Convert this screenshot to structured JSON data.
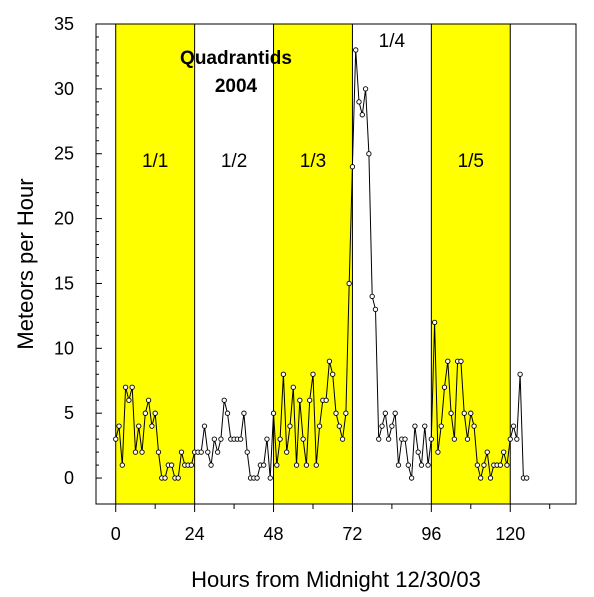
{
  "chart_data": {
    "type": "line",
    "title": "Quadrantids",
    "subtitle": "2004",
    "xlabel": "Hours from Midnight 12/30/03",
    "ylabel": "Meteors per Hour",
    "xlim": [
      -6,
      140
    ],
    "ylim": [
      -2,
      35
    ],
    "x_ticks": [
      0,
      24,
      48,
      72,
      96,
      120
    ],
    "y_ticks": [
      0,
      5,
      10,
      15,
      20,
      25,
      30,
      35
    ],
    "grid": false,
    "band_color": "#ffff00",
    "line_color": "#000000",
    "day_bands": [
      {
        "label": "1/1",
        "start": 0,
        "end": 24,
        "highlighted": true
      },
      {
        "label": "1/2",
        "start": 24,
        "end": 48,
        "highlighted": false
      },
      {
        "label": "1/3",
        "start": 48,
        "end": 72,
        "highlighted": true
      },
      {
        "label": "1/4",
        "start": 72,
        "end": 96,
        "highlighted": false
      },
      {
        "label": "1/5",
        "start": 96,
        "end": 120,
        "highlighted": true
      }
    ],
    "series": [
      {
        "x": [
          0,
          1,
          2,
          3,
          4,
          5,
          6,
          7,
          8,
          9,
          10,
          11,
          12,
          13,
          14,
          15,
          16,
          17,
          18,
          19,
          20,
          21,
          22,
          23,
          24,
          25,
          26,
          27,
          28,
          29,
          30,
          31,
          32,
          33,
          34,
          35,
          36,
          37,
          38,
          39,
          40,
          41,
          42,
          43,
          44,
          45,
          46,
          47,
          48,
          49,
          50,
          51,
          52,
          53,
          54,
          55,
          56,
          57,
          58,
          59,
          60,
          61,
          62,
          63,
          64,
          65,
          66,
          67,
          68,
          69,
          70,
          71,
          72,
          73,
          74,
          75,
          76,
          77,
          78,
          79,
          80,
          81,
          82,
          83,
          84,
          85,
          86,
          87,
          88,
          89,
          90,
          91,
          92,
          93,
          94,
          95,
          96,
          97,
          98,
          99,
          100,
          101,
          102,
          103,
          104,
          105,
          106,
          107,
          108,
          109,
          110,
          111,
          112,
          113,
          114,
          115,
          116,
          117,
          118,
          119,
          120,
          121,
          122,
          123,
          124,
          125
        ],
        "y": [
          3,
          4,
          1,
          7,
          6,
          7,
          2,
          4,
          2,
          5,
          6,
          4,
          5,
          2,
          0,
          0,
          1,
          1,
          0,
          0,
          2,
          1,
          1,
          1,
          2,
          2,
          2,
          4,
          2,
          1,
          3,
          2,
          3,
          6,
          5,
          3,
          3,
          3,
          3,
          5,
          2,
          0,
          0,
          0,
          1,
          1,
          3,
          0,
          5,
          1,
          3,
          8,
          2,
          4,
          7,
          1,
          6,
          3,
          1,
          6,
          8,
          1,
          4,
          6,
          6,
          9,
          8,
          5,
          4,
          3,
          5,
          15,
          24,
          33,
          29,
          28,
          30,
          25,
          14,
          13,
          3,
          4,
          5,
          3,
          4,
          5,
          1,
          3,
          3,
          1,
          0,
          4,
          2,
          1,
          4,
          1,
          3,
          12,
          2,
          4,
          7,
          9,
          5,
          3,
          9,
          9,
          5,
          3,
          5,
          4,
          1,
          0,
          1,
          2,
          0,
          1,
          1,
          1,
          2,
          1,
          3,
          4,
          3,
          8,
          0,
          0
        ]
      }
    ]
  }
}
